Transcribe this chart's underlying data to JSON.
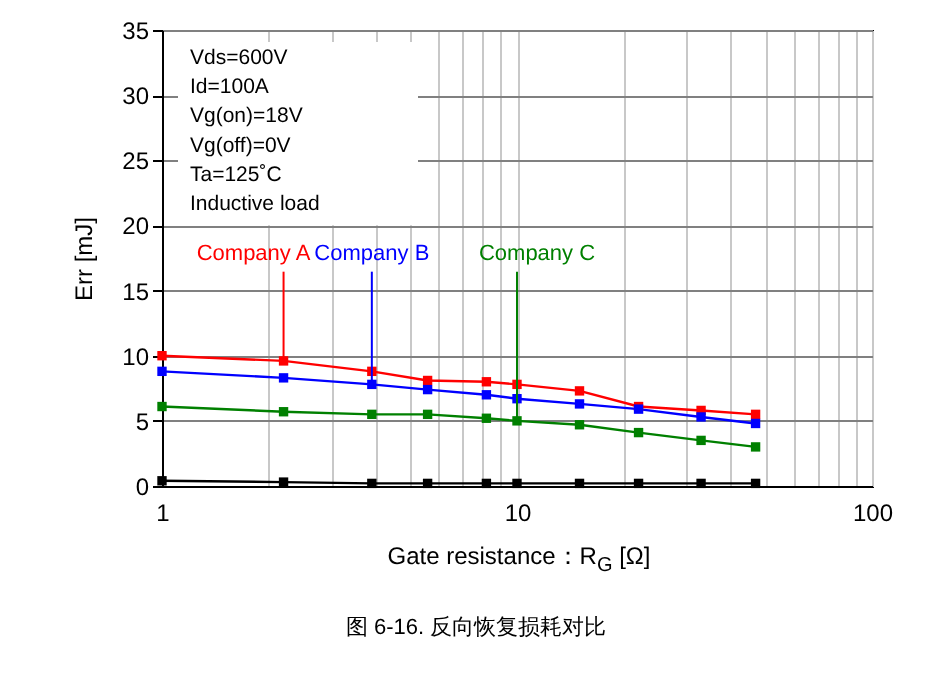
{
  "chart_data": {
    "type": "line",
    "xlabel": "Gate resistance：R$_{G}$ [Ω]",
    "ylabel": "Err [mJ]",
    "log": "x",
    "grid": true,
    "marker": "square",
    "line_style": "solid",
    "x": [
      1,
      2.2,
      3.9,
      5.6,
      8.2,
      10,
      15,
      22,
      33,
      47
    ],
    "xlim": [
      1,
      100
    ],
    "xticks": [
      1,
      {
        "value": 2,
        "label": null
      },
      {
        "value": 3,
        "label": null
      },
      {
        "value": 4,
        "label": null
      },
      {
        "value": 5,
        "label": null
      },
      {
        "value": 6,
        "label": null
      },
      {
        "value": 7,
        "label": null
      },
      {
        "value": 8,
        "label": null
      },
      {
        "value": 9,
        "label": null
      },
      10,
      {
        "value": 20,
        "label": null
      },
      {
        "value": 30,
        "label": null
      },
      {
        "value": 40,
        "label": null
      },
      {
        "value": 50,
        "label": null
      },
      {
        "value": 60,
        "label": null
      },
      {
        "value": 70,
        "label": null
      },
      {
        "value": 80,
        "label": null
      },
      {
        "value": 90,
        "label": null
      },
      100
    ],
    "ylim": [
      0,
      35
    ],
    "yticks": [
      0,
      5,
      10,
      15,
      20,
      25,
      30,
      35
    ],
    "series": [
      {
        "name": "Company A",
        "color": "#ff0000",
        "values": [
          10.0,
          9.6,
          8.8,
          8.1,
          8.0,
          7.8,
          7.3,
          6.1,
          5.8,
          5.5
        ]
      },
      {
        "name": "Company B",
        "color": "#0000ff",
        "values": [
          8.8,
          8.3,
          7.8,
          7.4,
          7.0,
          6.7,
          6.3,
          5.9,
          5.3,
          4.8
        ]
      },
      {
        "name": "Company C",
        "color": "#008000",
        "values": [
          6.1,
          5.7,
          5.5,
          5.5,
          5.2,
          5.0,
          4.7,
          4.1,
          3.5,
          3.0
        ]
      },
      {
        "color": "#000000",
        "values": [
          0.4,
          0.3,
          0.2,
          0.2,
          0.2,
          0.2,
          0.2,
          0.2,
          0.2,
          0.2
        ]
      }
    ],
    "annotations": [
      "Vds=600V",
      "Id=100A",
      "Vg(on)=18V",
      "Vg(off)=0V",
      "Ta=125˚C",
      "Inductive load",
      "图 6-16. 反向恢复损耗对比"
    ]
  }
}
